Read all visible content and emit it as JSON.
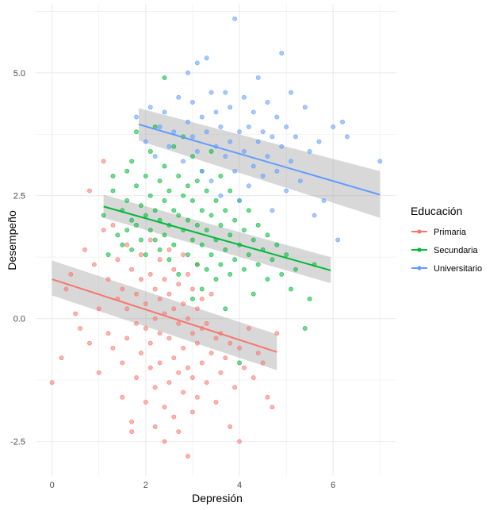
{
  "chart_data": {
    "type": "scatter",
    "xlabel": "Depresión",
    "ylabel": "Desempeño",
    "xlim": [
      -0.35,
      7.35
    ],
    "ylim": [
      -3.2,
      6.4
    ],
    "x_ticks": [
      0,
      2,
      4,
      6
    ],
    "x_tick_labels": [
      "0",
      "2",
      "4",
      "6"
    ],
    "y_ticks": [
      -2.5,
      0,
      2.5,
      5
    ],
    "y_tick_labels": [
      "-2.5",
      "0.0",
      "2.5",
      "5.0"
    ],
    "grid": true,
    "legend": {
      "title": "Educación",
      "placement": "right"
    },
    "series": [
      {
        "name": "Primaria",
        "color": "#F8766D",
        "fit": {
          "x": [
            0,
            4.8
          ],
          "y": [
            0.8,
            -0.68
          ],
          "ci_start": [
            0.47,
            1.18
          ],
          "ci_end": [
            -1.05,
            -0.32
          ]
        },
        "points": [
          [
            0,
            -1.3
          ],
          [
            0.2,
            -0.8
          ],
          [
            0.3,
            0.6
          ],
          [
            0.4,
            0.9
          ],
          [
            0.5,
            0.1
          ],
          [
            0.6,
            -0.2
          ],
          [
            0.7,
            1.4
          ],
          [
            0.8,
            2.6
          ],
          [
            0.8,
            -0.5
          ],
          [
            0.9,
            1.1
          ],
          [
            1,
            0.2
          ],
          [
            1,
            -1.1
          ],
          [
            1.1,
            3.2
          ],
          [
            1.1,
            1.8
          ],
          [
            1.2,
            0.8
          ],
          [
            1.2,
            -0.3
          ],
          [
            1.3,
            1.9
          ],
          [
            1.3,
            -0.6
          ],
          [
            1.4,
            1.2
          ],
          [
            1.4,
            0.4
          ],
          [
            1.5,
            0.6
          ],
          [
            1.5,
            -0.9
          ],
          [
            1.5,
            -1.6
          ],
          [
            1.6,
            1.5
          ],
          [
            1.6,
            0.2
          ],
          [
            1.6,
            -0.4
          ],
          [
            1.7,
            1
          ],
          [
            1.7,
            -2.1
          ],
          [
            1.7,
            -2.3
          ],
          [
            1.8,
            0.5
          ],
          [
            1.8,
            -0.1
          ],
          [
            1.8,
            -1.2
          ],
          [
            1.9,
            1.3
          ],
          [
            1.9,
            0.8
          ],
          [
            1.9,
            -0.7
          ],
          [
            2,
            0.3
          ],
          [
            2,
            -0.2
          ],
          [
            2,
            -1.7
          ],
          [
            2.1,
            1.6
          ],
          [
            2.1,
            0.9
          ],
          [
            2.1,
            -0.5
          ],
          [
            2.1,
            -1
          ],
          [
            2.2,
            0.6
          ],
          [
            2.2,
            0
          ],
          [
            2.2,
            -1.4
          ],
          [
            2.2,
            -2.2
          ],
          [
            2.3,
            1.2
          ],
          [
            2.3,
            0.4
          ],
          [
            2.3,
            -0.3
          ],
          [
            2.3,
            -0.9
          ],
          [
            2.4,
            0.8
          ],
          [
            2.4,
            0.1
          ],
          [
            2.4,
            -1.8
          ],
          [
            2.4,
            -2.5
          ],
          [
            2.5,
            1.4
          ],
          [
            2.5,
            0.5
          ],
          [
            2.5,
            -0.4
          ],
          [
            2.5,
            -1.3
          ],
          [
            2.6,
            1
          ],
          [
            2.6,
            0.2
          ],
          [
            2.6,
            -0.8
          ],
          [
            2.6,
            -2
          ],
          [
            2.7,
            0.7
          ],
          [
            2.7,
            -0.1
          ],
          [
            2.7,
            -1.1
          ],
          [
            2.7,
            -2.3
          ],
          [
            2.8,
            1.3
          ],
          [
            2.8,
            0.3
          ],
          [
            2.8,
            -0.6
          ],
          [
            2.8,
            -1.5
          ],
          [
            2.9,
            0.9
          ],
          [
            2.9,
            0
          ],
          [
            2.9,
            -1
          ],
          [
            2.9,
            -2.8
          ],
          [
            3,
            0.6
          ],
          [
            3,
            -0.3
          ],
          [
            3,
            -1.2
          ],
          [
            3,
            -1.9
          ],
          [
            3.1,
            1.1
          ],
          [
            3.1,
            0.2
          ],
          [
            3.1,
            -0.5
          ],
          [
            3.1,
            -1.6
          ],
          [
            3.2,
            0.4
          ],
          [
            3.2,
            -0.2
          ],
          [
            3.2,
            -0.9
          ],
          [
            3.3,
            -0.1
          ],
          [
            3.3,
            -1.3
          ],
          [
            3.4,
            0.5
          ],
          [
            3.4,
            -0.7
          ],
          [
            3.5,
            -0.4
          ],
          [
            3.5,
            -1.7
          ],
          [
            3.6,
            -0.3
          ],
          [
            3.6,
            -1.1
          ],
          [
            3.7,
            -0.8
          ],
          [
            3.8,
            -2.2
          ],
          [
            3.8,
            -0.5
          ],
          [
            3.9,
            -1.4
          ],
          [
            4,
            -0.6
          ],
          [
            4,
            -2.5
          ],
          [
            4.1,
            -1
          ],
          [
            4.2,
            -0.2
          ],
          [
            4.3,
            -1.2
          ],
          [
            4.4,
            -0.7
          ],
          [
            4.5,
            -0.9
          ],
          [
            4.6,
            -1.6
          ],
          [
            4.7,
            -1.8
          ],
          [
            4.8,
            -0.3
          ]
        ]
      },
      {
        "name": "Secundaria",
        "color": "#00BA38",
        "fit": {
          "x": [
            1.1,
            5.95
          ],
          "y": [
            2.28,
            0.98
          ],
          "ci_start": [
            2.05,
            2.52
          ],
          "ci_end": [
            0.72,
            1.25
          ]
        },
        "points": [
          [
            1.1,
            2.1
          ],
          [
            1.2,
            1.3
          ],
          [
            1.3,
            2.6
          ],
          [
            1.3,
            2.9
          ],
          [
            1.4,
            1.7
          ],
          [
            1.5,
            2.2
          ],
          [
            1.5,
            1.5
          ],
          [
            1.6,
            3
          ],
          [
            1.6,
            2.4
          ],
          [
            1.6,
            1.8
          ],
          [
            1.7,
            2
          ],
          [
            1.7,
            1.4
          ],
          [
            1.7,
            3.2
          ],
          [
            1.8,
            2.7
          ],
          [
            1.8,
            1.9
          ],
          [
            1.8,
            3.8
          ],
          [
            1.9,
            2.3
          ],
          [
            1.9,
            1.6
          ],
          [
            2,
            2.9
          ],
          [
            2,
            2.1
          ],
          [
            2,
            1.3
          ],
          [
            2.1,
            3.4
          ],
          [
            2.1,
            2.5
          ],
          [
            2.1,
            1.8
          ],
          [
            2.2,
            2.2
          ],
          [
            2.2,
            1.6
          ],
          [
            2.2,
            3.9
          ],
          [
            2.3,
            2.8
          ],
          [
            2.3,
            2
          ],
          [
            2.3,
            1.4
          ],
          [
            2.4,
            3.1
          ],
          [
            2.4,
            2.4
          ],
          [
            2.4,
            1.7
          ],
          [
            2.4,
            4.9
          ],
          [
            2.5,
            2.6
          ],
          [
            2.5,
            1.9
          ],
          [
            2.5,
            1.2
          ],
          [
            2.6,
            3.5
          ],
          [
            2.6,
            2.2
          ],
          [
            2.6,
            1.5
          ],
          [
            2.7,
            2.9
          ],
          [
            2.7,
            2.1
          ],
          [
            2.7,
            0.9
          ],
          [
            2.8,
            3.7
          ],
          [
            2.8,
            2.5
          ],
          [
            2.8,
            1.8
          ],
          [
            2.9,
            2.7
          ],
          [
            2.9,
            2
          ],
          [
            2.9,
            1.3
          ],
          [
            3,
            3.3
          ],
          [
            3,
            2.4
          ],
          [
            3,
            1.6
          ],
          [
            3,
            0.4
          ],
          [
            3.1,
            2.8
          ],
          [
            3.1,
            1.9
          ],
          [
            3.1,
            1.1
          ],
          [
            3.2,
            3
          ],
          [
            3.2,
            2.2
          ],
          [
            3.2,
            1.5
          ],
          [
            3.2,
            0.6
          ],
          [
            3.3,
            2.6
          ],
          [
            3.3,
            1.8
          ],
          [
            3.3,
            1
          ],
          [
            3.4,
            3.4
          ],
          [
            3.4,
            2.1
          ],
          [
            3.4,
            1.3
          ],
          [
            3.5,
            2.4
          ],
          [
            3.5,
            1.6
          ],
          [
            3.5,
            0.8
          ],
          [
            3.6,
            2.9
          ],
          [
            3.6,
            1.9
          ],
          [
            3.6,
            1.1
          ],
          [
            3.7,
            2.2
          ],
          [
            3.7,
            1.4
          ],
          [
            3.7,
            0.2
          ],
          [
            3.8,
            2.6
          ],
          [
            3.8,
            1.7
          ],
          [
            3.8,
            0.9
          ],
          [
            3.9,
            2
          ],
          [
            3.9,
            1.2
          ],
          [
            4,
            2.4
          ],
          [
            4,
            1.5
          ],
          [
            4,
            -0.9
          ],
          [
            4.1,
            1.8
          ],
          [
            4.1,
            1
          ],
          [
            4.2,
            2.2
          ],
          [
            4.2,
            1.3
          ],
          [
            4.3,
            1.6
          ],
          [
            4.3,
            0.5
          ],
          [
            4.4,
            1.9
          ],
          [
            4.4,
            1.1
          ],
          [
            4.5,
            1.4
          ],
          [
            4.6,
            1.7
          ],
          [
            4.6,
            0.8
          ],
          [
            4.7,
            1.2
          ],
          [
            4.8,
            1.5
          ],
          [
            4.9,
            0.9
          ],
          [
            5,
            1.3
          ],
          [
            5.1,
            0.6
          ],
          [
            5.2,
            1
          ],
          [
            5.4,
            -0.2
          ],
          [
            5.5,
            0.4
          ],
          [
            5.6,
            1.1
          ]
        ]
      },
      {
        "name": "Universitario",
        "color": "#619CFF",
        "fit": {
          "x": [
            1.85,
            7
          ],
          "y": [
            3.95,
            2.52
          ],
          "ci_start": [
            3.62,
            4.28
          ],
          "ci_end": [
            2.05,
            3.0
          ]
        },
        "points": [
          [
            1.8,
            4.1
          ],
          [
            2,
            3.6
          ],
          [
            2.1,
            4.3
          ],
          [
            2.2,
            3.3
          ],
          [
            2.3,
            3.9
          ],
          [
            2.4,
            4.2
          ],
          [
            2.5,
            3.5
          ],
          [
            2.6,
            3.8
          ],
          [
            2.7,
            4.5
          ],
          [
            2.8,
            3.2
          ],
          [
            2.9,
            4
          ],
          [
            2.9,
            5
          ],
          [
            3,
            3.7
          ],
          [
            3,
            4.4
          ],
          [
            3.1,
            3.4
          ],
          [
            3.1,
            5.2
          ],
          [
            3.2,
            4.1
          ],
          [
            3.2,
            3
          ],
          [
            3.3,
            5.3
          ],
          [
            3.3,
            3.8
          ],
          [
            3.4,
            4.6
          ],
          [
            3.4,
            2.8
          ],
          [
            3.5,
            3.5
          ],
          [
            3.5,
            4.2
          ],
          [
            3.6,
            3.9
          ],
          [
            3.6,
            2.5
          ],
          [
            3.7,
            4.6
          ],
          [
            3.7,
            3.3
          ],
          [
            3.8,
            3.6
          ],
          [
            3.8,
            4.3
          ],
          [
            3.9,
            3
          ],
          [
            3.9,
            6.1
          ],
          [
            4,
            3.8
          ],
          [
            4,
            2.4
          ],
          [
            4.1,
            4.5
          ],
          [
            4.1,
            3.4
          ],
          [
            4.2,
            3.9
          ],
          [
            4.2,
            2.7
          ],
          [
            4.3,
            4.2
          ],
          [
            4.3,
            3.1
          ],
          [
            4.4,
            4.9
          ],
          [
            4.4,
            3.6
          ],
          [
            4.5,
            2.9
          ],
          [
            4.5,
            3.8
          ],
          [
            4.6,
            4.4
          ],
          [
            4.6,
            3.3
          ],
          [
            4.7,
            3.7
          ],
          [
            4.7,
            2.2
          ],
          [
            4.8,
            4.1
          ],
          [
            4.8,
            3
          ],
          [
            4.9,
            3.5
          ],
          [
            4.9,
            5.4
          ],
          [
            5,
            3.9
          ],
          [
            5,
            2.6
          ],
          [
            5.1,
            4.6
          ],
          [
            5.1,
            3.2
          ],
          [
            5.2,
            3.7
          ],
          [
            5.3,
            2.8
          ],
          [
            5.4,
            4.3
          ],
          [
            5.5,
            3.4
          ],
          [
            5.6,
            2.1
          ],
          [
            5.7,
            3.6
          ],
          [
            5.8,
            2.4
          ],
          [
            6,
            3.9
          ],
          [
            6.1,
            1.6
          ],
          [
            6.2,
            4
          ],
          [
            6.3,
            3.7
          ],
          [
            7,
            3.2
          ]
        ]
      }
    ]
  }
}
